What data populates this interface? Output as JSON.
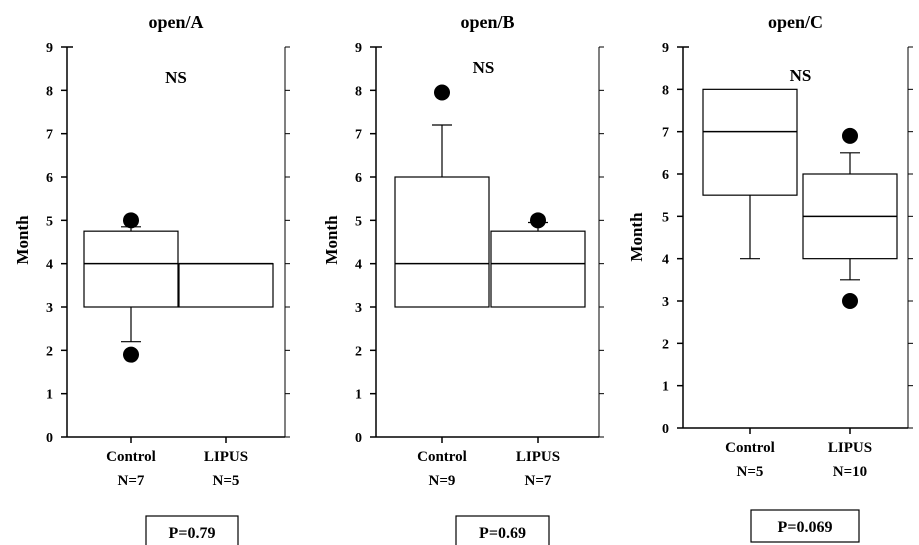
{
  "chart_data": [
    {
      "type": "box",
      "title": "open/A",
      "ylabel": "Month",
      "ylim": [
        0,
        9
      ],
      "yticks": [
        "0",
        "1",
        "2",
        "3",
        "4",
        "5",
        "6",
        "7",
        "8",
        "9"
      ],
      "annotation": "NS",
      "p_value": "P=0.79",
      "groups": [
        {
          "name": "Control",
          "n_label": "N=7",
          "q1": 3,
          "median": 4,
          "q3": 4.75,
          "whisker_low": 2.2,
          "whisker_high": 4.85,
          "outliers": [
            1.9,
            5.0
          ]
        },
        {
          "name": "LIPUS",
          "n_label": "N=5",
          "q1": 3,
          "median": 4,
          "q3": 4,
          "whisker_low": null,
          "whisker_high": null,
          "outliers": []
        }
      ]
    },
    {
      "type": "box",
      "title": "open/B",
      "ylabel": "Month",
      "ylim": [
        0,
        9
      ],
      "yticks": [
        "0",
        "1",
        "2",
        "3",
        "4",
        "5",
        "6",
        "7",
        "8",
        "9"
      ],
      "annotation": "NS",
      "p_value": "P=0.69",
      "groups": [
        {
          "name": "Control",
          "n_label": "N=9",
          "q1": 3,
          "median": 4,
          "q3": 6,
          "whisker_low": null,
          "whisker_high": 7.2,
          "outliers": [
            7.95
          ]
        },
        {
          "name": "LIPUS",
          "n_label": "N=7",
          "q1": 3,
          "median": 4,
          "q3": 4.75,
          "whisker_low": null,
          "whisker_high": 4.95,
          "outliers": [
            5.0
          ]
        }
      ]
    },
    {
      "type": "box",
      "title": "open/C",
      "ylabel": "Month",
      "ylim": [
        0,
        9
      ],
      "yticks": [
        "0",
        "1",
        "2",
        "3",
        "4",
        "5",
        "6",
        "7",
        "8",
        "9"
      ],
      "annotation": "NS",
      "p_value": "P=0.069",
      "groups": [
        {
          "name": "Control",
          "n_label": "N=5",
          "q1": 5.5,
          "median": 7,
          "q3": 8,
          "whisker_low": 4,
          "whisker_high": null,
          "outliers": []
        },
        {
          "name": "LIPUS",
          "n_label": "N=10",
          "q1": 4,
          "median": 5,
          "q3": 6,
          "whisker_low": 3.5,
          "whisker_high": 6.5,
          "outliers": [
            3.0,
            6.9
          ]
        }
      ]
    }
  ]
}
